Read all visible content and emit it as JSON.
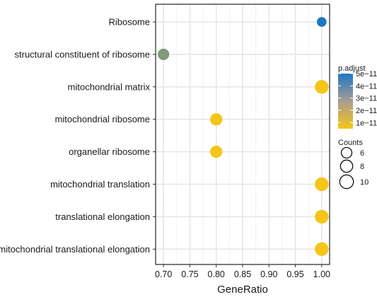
{
  "chart_data": {
    "type": "scatter",
    "title": "",
    "xlabel": "GeneRatio",
    "ylabel": "",
    "xlim": [
      0.685,
      1.015
    ],
    "x_ticks": [
      0.7,
      0.75,
      0.8,
      0.85,
      0.9,
      0.95,
      1.0
    ],
    "x_tick_labels": [
      "0.70",
      "0.75",
      "0.80",
      "0.85",
      "0.90",
      "0.95",
      "1.00"
    ],
    "grid": true,
    "categories": [
      "Ribosome",
      "structural constituent of ribosome",
      "mitochondrial matrix",
      "mitochondrial ribosome",
      "organellar ribosome",
      "mitochondrial translation",
      "translational elongation",
      "mitochondrial translational elongation"
    ],
    "points": [
      {
        "category": "Ribosome",
        "gene_ratio": 1.0,
        "count": 5,
        "p_adjust": 5e-11
      },
      {
        "category": "structural constituent of ribosome",
        "gene_ratio": 0.7,
        "count": 7,
        "p_adjust": 3e-11
      },
      {
        "category": "mitochondrial matrix",
        "gene_ratio": 1.0,
        "count": 10,
        "p_adjust": 5e-12
      },
      {
        "category": "mitochondrial ribosome",
        "gene_ratio": 0.8,
        "count": 8,
        "p_adjust": 5e-12
      },
      {
        "category": "organellar ribosome",
        "gene_ratio": 0.8,
        "count": 8,
        "p_adjust": 5e-12
      },
      {
        "category": "mitochondrial translation",
        "gene_ratio": 1.0,
        "count": 10,
        "p_adjust": 5e-12
      },
      {
        "category": "translational elongation",
        "gene_ratio": 1.0,
        "count": 10,
        "p_adjust": 5e-12
      },
      {
        "category": "mitochondrial translational elongation",
        "gene_ratio": 1.0,
        "count": 10,
        "p_adjust": 5e-12
      }
    ],
    "color_legend": {
      "title": "p.adjust",
      "range": [
        5e-12,
        5e-11
      ],
      "low_color": "#f5c518",
      "high_color": "#1f77c4",
      "ticks": [
        5e-11,
        4e-11,
        3e-11,
        2e-11,
        1e-11
      ],
      "tick_labels": [
        "5e−11",
        "4e−11",
        "3e−11",
        "2e−11",
        "1e−11"
      ]
    },
    "size_legend": {
      "title": "Counts",
      "values": [
        6,
        8,
        10
      ],
      "labels": [
        "6",
        "8",
        "10"
      ]
    },
    "legend_placement": "right"
  }
}
